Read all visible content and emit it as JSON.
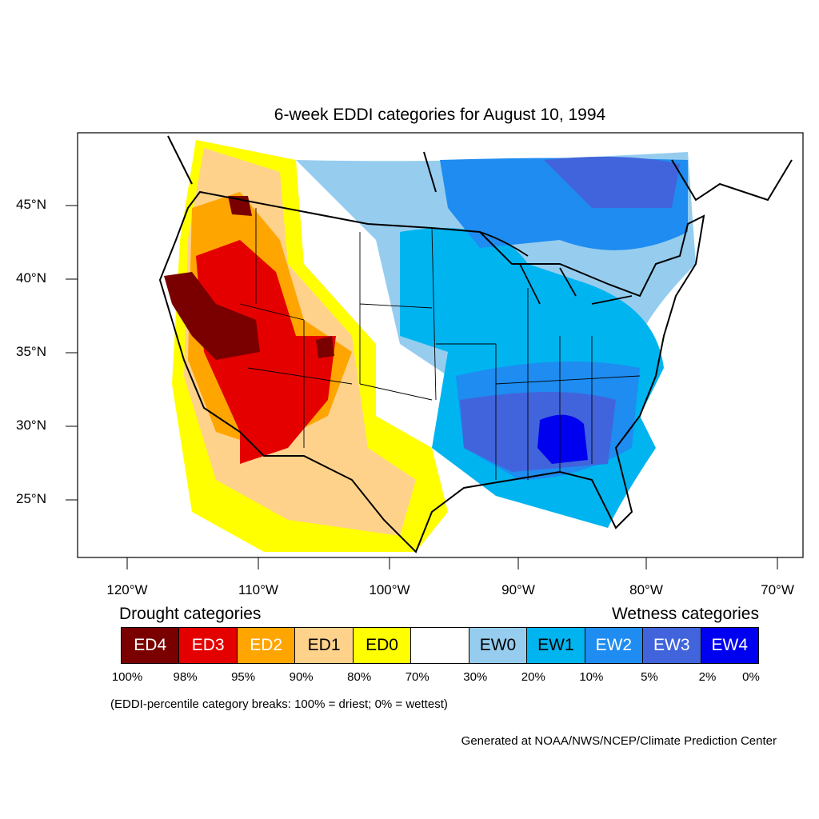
{
  "title": "6-week EDDI categories for August 10, 1994",
  "lat_labels": [
    "45°N",
    "40°N",
    "35°N",
    "30°N",
    "25°N"
  ],
  "lon_labels": [
    "120°W",
    "110°W",
    "100°W",
    "90°W",
    "80°W",
    "70°W"
  ],
  "legend": {
    "drought_heading": "Drought categories",
    "wetness_heading": "Wetness categories",
    "categories": [
      {
        "label": "ED4",
        "color": "#7a0000"
      },
      {
        "label": "ED3",
        "color": "#e50000"
      },
      {
        "label": "ED2",
        "color": "#ffa500"
      },
      {
        "label": "ED1",
        "color": "#ffd28c"
      },
      {
        "label": "ED0",
        "color": "#ffff00"
      },
      {
        "label": "",
        "color": "#ffffff"
      },
      {
        "label": "EW0",
        "color": "#96cdef"
      },
      {
        "label": "EW1",
        "color": "#00b4f0"
      },
      {
        "label": "EW2",
        "color": "#1e8cf0"
      },
      {
        "label": "EW3",
        "color": "#4164dc"
      },
      {
        "label": "EW4",
        "color": "#0000f0"
      }
    ],
    "breaks": [
      "100%",
      "98%",
      "95%",
      "90%",
      "80%",
      "70%",
      "30%",
      "20%",
      "10%",
      "5%",
      "2%",
      "0%"
    ],
    "note": "(EDDI-percentile category breaks: 100% = driest; 0% = wettest)"
  },
  "credit": "Generated at NOAA/NWS/NCEP/Climate Prediction Center"
}
